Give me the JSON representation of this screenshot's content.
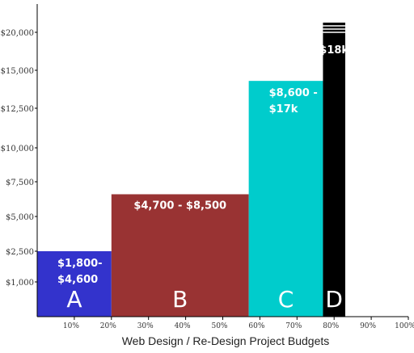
{
  "chart_data": {
    "type": "bar",
    "title": "",
    "xlabel": "Web Design / Re-Design Project Budgets",
    "ylabel": "",
    "x_ticks": [
      {
        "value": 10,
        "label": "10%"
      },
      {
        "value": 20,
        "label": "20%"
      },
      {
        "value": 30,
        "label": "30%"
      },
      {
        "value": 40,
        "label": "40%"
      },
      {
        "value": 50,
        "label": "50%"
      },
      {
        "value": 60,
        "label": "60%"
      },
      {
        "value": 70,
        "label": "70%"
      },
      {
        "value": 80,
        "label": "80%"
      },
      {
        "value": 90,
        "label": "90%"
      },
      {
        "value": 100,
        "label": "100%"
      }
    ],
    "y_ticks": [
      {
        "value": 1000,
        "label": "$1,000"
      },
      {
        "value": 2500,
        "label": "$2,500"
      },
      {
        "value": 5000,
        "label": "$5,000"
      },
      {
        "value": 7500,
        "label": "$7,500"
      },
      {
        "value": 10000,
        "label": "$10,000"
      },
      {
        "value": 12500,
        "label": "$12,500"
      },
      {
        "value": 15000,
        "label": "$15,000"
      },
      {
        "value": 20000,
        "label": "$20,000"
      }
    ],
    "bars": [
      {
        "letter": "A",
        "range_label": [
          "$1,800-",
          "$4,600"
        ],
        "x_start": 0,
        "x_end": 20,
        "value": 2500,
        "color": "#3333cc"
      },
      {
        "letter": "B",
        "range_label": [
          "$4,700 - $8,500"
        ],
        "x_start": 20,
        "x_end": 57,
        "value": 6600,
        "color": "#993333"
      },
      {
        "letter": "C",
        "range_label": [
          "$8,600 -",
          "$17k"
        ],
        "x_start": 57,
        "x_end": 77,
        "value": 14300,
        "color": "#00cccc"
      },
      {
        "letter": "D",
        "range_label": [
          "$18k"
        ],
        "x_start": 77,
        "x_end": 83,
        "value": 21500,
        "color": "#000000",
        "capped": true
      }
    ]
  }
}
